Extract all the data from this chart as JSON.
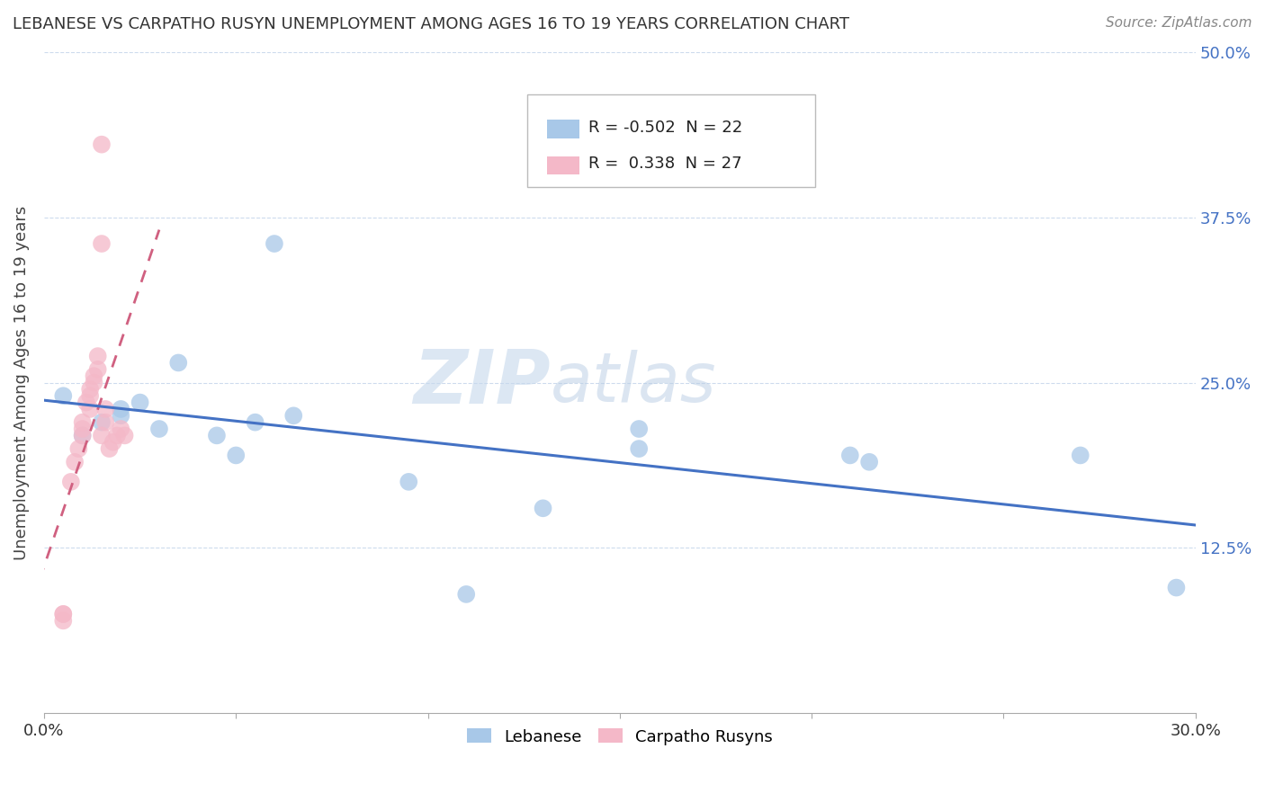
{
  "title": "LEBANESE VS CARPATHO RUSYN UNEMPLOYMENT AMONG AGES 16 TO 19 YEARS CORRELATION CHART",
  "source": "Source: ZipAtlas.com",
  "ylabel": "Unemployment Among Ages 16 to 19 years",
  "xlim": [
    0.0,
    0.3
  ],
  "ylim": [
    0.0,
    0.5
  ],
  "xticks": [
    0.0,
    0.05,
    0.1,
    0.15,
    0.2,
    0.25,
    0.3
  ],
  "yticks_right": [
    0.125,
    0.25,
    0.375,
    0.5
  ],
  "ytick_labels_right": [
    "12.5%",
    "25.0%",
    "37.5%",
    "50.0%"
  ],
  "legend_R1": "-0.502",
  "legend_N1": "22",
  "legend_R2": "0.338",
  "legend_N2": "27",
  "color_lebanese": "#a8c8e8",
  "color_carpatho": "#f4b8c8",
  "trendline_lebanese": "#4472c4",
  "trendline_carpatho": "#d06080",
  "watermark_zip": "ZIP",
  "watermark_atlas": "atlas",
  "lebanese_x": [
    0.005,
    0.01,
    0.015,
    0.02,
    0.02,
    0.025,
    0.03,
    0.035,
    0.045,
    0.05,
    0.055,
    0.06,
    0.065,
    0.095,
    0.11,
    0.13,
    0.155,
    0.155,
    0.21,
    0.215,
    0.27,
    0.295
  ],
  "lebanese_y": [
    0.24,
    0.21,
    0.22,
    0.225,
    0.23,
    0.235,
    0.215,
    0.265,
    0.21,
    0.195,
    0.22,
    0.355,
    0.225,
    0.175,
    0.09,
    0.155,
    0.2,
    0.215,
    0.195,
    0.19,
    0.195,
    0.095
  ],
  "carpatho_x": [
    0.005,
    0.005,
    0.005,
    0.007,
    0.008,
    0.009,
    0.01,
    0.01,
    0.01,
    0.011,
    0.012,
    0.012,
    0.012,
    0.013,
    0.013,
    0.014,
    0.014,
    0.015,
    0.015,
    0.015,
    0.016,
    0.016,
    0.017,
    0.018,
    0.019,
    0.02,
    0.021
  ],
  "carpatho_y": [
    0.075,
    0.075,
    0.07,
    0.175,
    0.19,
    0.2,
    0.21,
    0.215,
    0.22,
    0.235,
    0.24,
    0.23,
    0.245,
    0.25,
    0.255,
    0.26,
    0.27,
    0.355,
    0.43,
    0.21,
    0.22,
    0.23,
    0.2,
    0.205,
    0.21,
    0.215,
    0.21
  ],
  "background_color": "#ffffff",
  "grid_color": "#c8d8ec"
}
